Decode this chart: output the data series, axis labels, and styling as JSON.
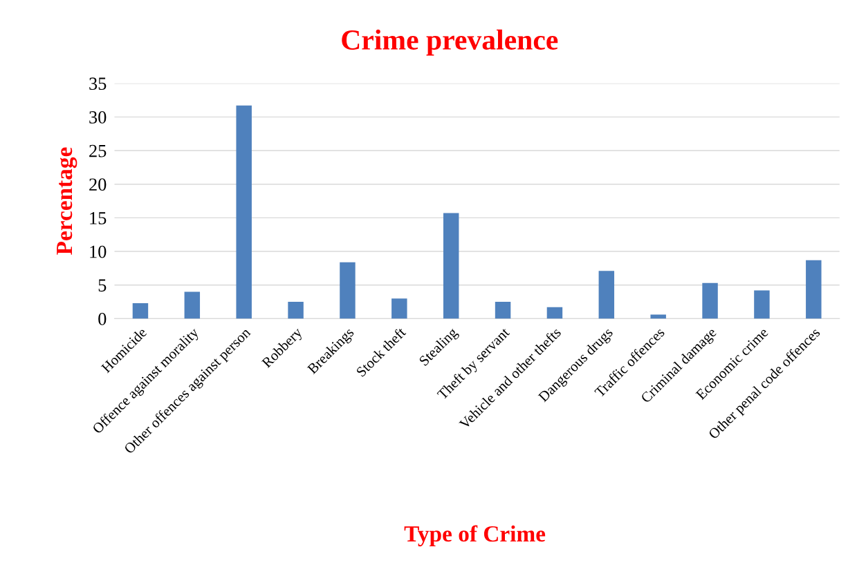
{
  "chart_data": {
    "type": "bar",
    "title": "Crime prevalence",
    "xlabel": "Type of Crime",
    "ylabel": "Percentage",
    "categories": [
      "Homicide",
      "Offence against morality",
      "Other offences against person",
      "Robbery",
      "Breakings",
      "Stock theft",
      "Stealing",
      "Theft by servant",
      "Vehicle and other thefts",
      "Dangerous drugs",
      "Traffic offences",
      "Criminal damage",
      "Economic crime",
      "Other penal code offences"
    ],
    "values": [
      2.3,
      4.0,
      31.7,
      2.5,
      8.4,
      3.0,
      15.7,
      2.5,
      1.7,
      7.1,
      0.6,
      5.3,
      4.2,
      8.7
    ],
    "color": "#4f81bd",
    "ylim": [
      0,
      35
    ],
    "yticks": [
      0,
      5,
      10,
      15,
      20,
      25,
      30,
      35
    ],
    "grid": "y"
  }
}
